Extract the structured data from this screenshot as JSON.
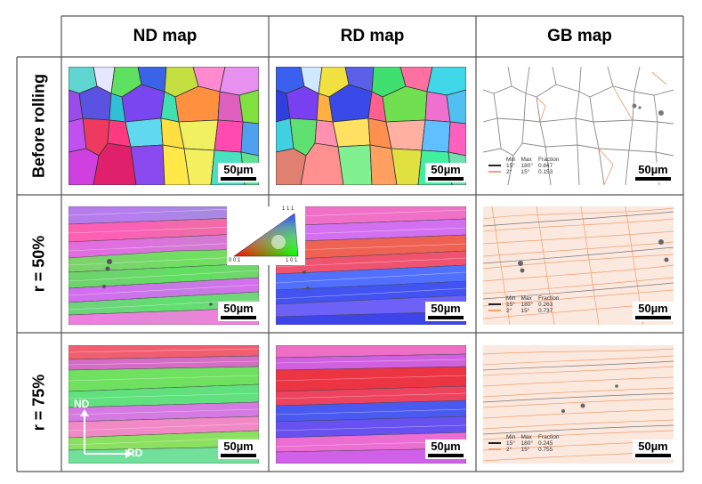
{
  "columns": [
    "ND map",
    "RD map",
    "GB map"
  ],
  "rows": [
    {
      "label": "Before rolling",
      "gb_fractions": [
        "0.847",
        "0.153"
      ]
    },
    {
      "label": "r = 50%",
      "gb_fractions": [
        "0.263",
        "0.737"
      ]
    },
    {
      "label": "r = 75%",
      "gb_fractions": [
        "0.245",
        "0.755"
      ]
    }
  ],
  "scale_bar": "50µm",
  "gb_legend": {
    "headers": [
      "Min",
      "Max",
      "Fraction"
    ],
    "rows": [
      {
        "min": "15°",
        "max": "180°",
        "color": "#222222"
      },
      {
        "min": "2°",
        "max": "15°",
        "color": "#f0a070"
      }
    ]
  },
  "ipf_key": {
    "top": "1 1 1",
    "left": "0 0 1",
    "right": "1 0 1"
  },
  "axes": {
    "nd": "ND",
    "rd": "RD"
  },
  "colors": {
    "grid": "#555555",
    "low_angle": "#f0a070",
    "high_angle": "#222222"
  }
}
